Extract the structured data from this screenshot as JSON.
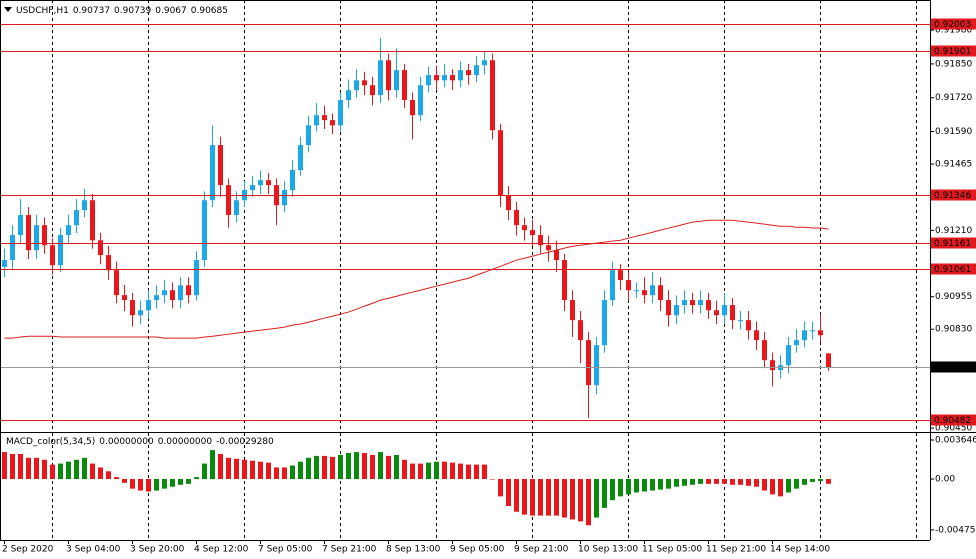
{
  "chart_data": {
    "type": "candlestick",
    "symbol": "USDCHF,H1",
    "ohlc": [
      0.90737,
      0.90739,
      0.9067,
      0.90685
    ],
    "categories": [
      "2 Sep 2020",
      null,
      null,
      null,
      null,
      null,
      null,
      null,
      "3 Sep 04:00",
      null,
      null,
      null,
      null,
      null,
      null,
      null,
      "3 Sep 20:00",
      null,
      null,
      null,
      null,
      null,
      null,
      null,
      "4 Sep 12:00",
      null,
      null,
      null,
      null,
      null,
      null,
      null,
      "7 Sep 05:00",
      null,
      null,
      null,
      null,
      null,
      null,
      null,
      "7 Sep 21:00",
      null,
      null,
      null,
      null,
      null,
      null,
      null,
      "8 Sep 13:00",
      null,
      null,
      null,
      null,
      null,
      null,
      null,
      "9 Sep 05:00",
      null,
      null,
      null,
      null,
      null,
      null,
      null,
      "9 Sep 21:00",
      null,
      null,
      null,
      null,
      null,
      null,
      null,
      "10 Sep 13:00",
      null,
      null,
      null,
      null,
      null,
      null,
      null,
      "11 Sep 05:00",
      null,
      null,
      null,
      null,
      null,
      null,
      null,
      "11 Sep 21:00",
      null,
      null,
      null,
      null,
      null,
      null,
      null,
      "14 Sep 14:00",
      null,
      null,
      null,
      null,
      null,
      null,
      null
    ],
    "open": [
      0.9107,
      0.91096,
      0.91192,
      0.91269,
      0.91134,
      0.9123,
      0.91153,
      0.91076,
      0.91192,
      0.9123,
      0.91288,
      0.91326,
      0.91172,
      0.91115,
      0.91057,
      0.90961,
      0.90942,
      0.90884,
      0.90903,
      0.90942,
      0.90961,
      0.9098,
      0.90942,
      0.90999,
      0.90961,
      0.91096,
      0.91326,
      0.91538,
      0.91384,
      0.91269,
      0.91326,
      0.91365,
      0.91384,
      0.91403,
      0.91384,
      0.91307,
      0.91365,
      0.91442,
      0.91538,
      0.91614,
      0.91653,
      0.91634,
      0.91614,
      0.91711,
      0.91749,
      0.91787,
      0.91768,
      0.9173,
      0.91864,
      0.91749,
      0.91826,
      0.91711,
      0.91653,
      0.91768,
      0.91807,
      0.91787,
      0.91807,
      0.91787,
      0.91826,
      0.91807,
      0.91845,
      0.91864,
      0.91595,
      0.91345,
      0.91288,
      0.9123,
      0.91211,
      0.91192,
      0.91153,
      0.91134,
      0.91096,
      0.90942,
      0.90865,
      0.90788,
      0.90615,
      0.90769,
      0.90942,
      0.91057,
      0.91019,
      0.9098,
      0.9098,
      0.90961,
      0.90999,
      0.90942,
      0.90884,
      0.90923,
      0.90942,
      0.90923,
      0.90942,
      0.90903,
      0.90884,
      0.90923,
      0.90865,
      0.90865,
      0.90826,
      0.90788,
      0.90711,
      0.90673,
      0.90692,
      0.90769,
      0.90788,
      0.90826,
      0.90826,
      0.90737
    ],
    "high": [
      0.9114,
      0.9123,
      0.9133,
      0.913,
      0.9127,
      0.9126,
      0.9118,
      0.9122,
      0.9127,
      0.9133,
      0.9137,
      0.9135,
      0.912,
      0.9115,
      0.9109,
      0.91,
      0.9097,
      0.9094,
      0.9098,
      0.91,
      0.9102,
      0.9101,
      0.9103,
      0.9103,
      0.9113,
      0.9136,
      0.91614,
      0.9157,
      0.9141,
      0.9136,
      0.914,
      0.9142,
      0.9144,
      0.9143,
      0.9141,
      0.914,
      0.9148,
      0.9157,
      0.9165,
      0.917,
      0.9169,
      0.9166,
      0.9174,
      0.9179,
      0.9183,
      0.9182,
      0.918,
      0.9195,
      0.9189,
      0.9191,
      0.9185,
      0.9174,
      0.918,
      0.9184,
      0.9184,
      0.9185,
      0.9183,
      0.9186,
      0.9185,
      0.9188,
      0.919,
      0.9189,
      0.9162,
      0.9138,
      0.9132,
      0.9126,
      0.9125,
      0.9123,
      0.9119,
      0.9117,
      0.9112,
      0.9098,
      0.909,
      0.9082,
      0.908,
      0.9098,
      0.9109,
      0.9108,
      0.9105,
      0.9101,
      0.9103,
      0.9105,
      0.9103,
      0.9098,
      0.9096,
      0.9098,
      0.9097,
      0.9098,
      0.9097,
      0.9094,
      0.9097,
      0.9095,
      0.909,
      0.909,
      0.9086,
      0.9082,
      0.9074,
      0.9073,
      0.908,
      0.9083,
      0.9086,
      0.9086,
      0.9089,
      0.90739
    ],
    "low": [
      0.9103,
      0.9106,
      0.9116,
      0.911,
      0.911,
      0.9112,
      0.9104,
      0.9105,
      0.9116,
      0.912,
      0.9126,
      0.9114,
      0.9108,
      0.9102,
      0.9093,
      0.909,
      0.9084,
      0.9085,
      0.9087,
      0.9091,
      0.9093,
      0.9091,
      0.9091,
      0.9093,
      0.9094,
      0.9107,
      0.913,
      0.9134,
      0.9122,
      0.9124,
      0.913,
      0.9134,
      0.9135,
      0.9135,
      0.9123,
      0.9128,
      0.9134,
      0.9142,
      0.9151,
      0.9159,
      0.916,
      0.9158,
      0.9159,
      0.9168,
      0.9172,
      0.9173,
      0.9169,
      0.917,
      0.9171,
      0.9172,
      0.9168,
      0.9156,
      0.9163,
      0.9174,
      0.9175,
      0.9176,
      0.9175,
      0.9176,
      0.9177,
      0.9178,
      0.9181,
      0.9156,
      0.913,
      0.9125,
      0.9119,
      0.9117,
      0.9115,
      0.9112,
      0.9109,
      0.9105,
      0.909,
      0.908,
      0.907,
      0.90488,
      0.9058,
      0.9074,
      0.9092,
      0.9098,
      0.9094,
      0.9095,
      0.9093,
      0.9093,
      0.909,
      0.9084,
      0.9085,
      0.9089,
      0.9089,
      0.9089,
      0.9087,
      0.9085,
      0.9085,
      0.9083,
      0.9083,
      0.9079,
      0.9075,
      0.9068,
      0.9061,
      0.9064,
      0.9066,
      0.9074,
      0.9076,
      0.9079,
      0.9078,
      0.9067
    ],
    "close": [
      0.91096,
      0.91192,
      0.91269,
      0.91134,
      0.9123,
      0.91153,
      0.91076,
      0.91192,
      0.9123,
      0.91288,
      0.91326,
      0.91172,
      0.91115,
      0.91057,
      0.90961,
      0.90942,
      0.90884,
      0.90903,
      0.90942,
      0.90961,
      0.9098,
      0.90942,
      0.90999,
      0.90961,
      0.91096,
      0.91326,
      0.91538,
      0.91384,
      0.91269,
      0.91326,
      0.91365,
      0.91384,
      0.91403,
      0.91384,
      0.91307,
      0.91365,
      0.91442,
      0.91538,
      0.91614,
      0.91653,
      0.91634,
      0.91614,
      0.91711,
      0.91749,
      0.91787,
      0.91768,
      0.9173,
      0.91864,
      0.91749,
      0.91826,
      0.91711,
      0.91653,
      0.91768,
      0.91807,
      0.91787,
      0.91807,
      0.91787,
      0.91826,
      0.91807,
      0.91845,
      0.91864,
      0.91595,
      0.91345,
      0.91288,
      0.9123,
      0.91211,
      0.91192,
      0.91153,
      0.91134,
      0.91096,
      0.90942,
      0.90865,
      0.90788,
      0.90615,
      0.90769,
      0.90942,
      0.91057,
      0.91019,
      0.9098,
      0.9098,
      0.90961,
      0.90999,
      0.90942,
      0.90884,
      0.90923,
      0.90942,
      0.90923,
      0.90942,
      0.90903,
      0.90884,
      0.90923,
      0.90865,
      0.90865,
      0.90826,
      0.90788,
      0.90711,
      0.90673,
      0.90692,
      0.90769,
      0.90788,
      0.90826,
      0.90826,
      0.90807,
      0.90685
    ],
    "up_color": "#1ea7e6",
    "down_color": "#e8171c",
    "ylim": [
      0.90435,
      0.92088
    ],
    "yticks": [
      {
        "value": 0.9198,
        "label": "0.91980"
      },
      {
        "value": 0.9185,
        "label": "0.91850"
      },
      {
        "value": 0.9172,
        "label": "0.91720"
      },
      {
        "value": 0.9159,
        "label": "0.91590"
      },
      {
        "value": 0.91465,
        "label": "0.91465"
      },
      {
        "value": 0.9121,
        "label": "0.91210"
      },
      {
        "value": 0.90955,
        "label": "0.90955"
      },
      {
        "value": 0.9083,
        "label": "0.90830"
      },
      {
        "value": 0.9045,
        "label": "0.90450"
      }
    ],
    "levels": [
      0.92003,
      0.91901,
      0.91346,
      0.91161,
      0.91061,
      0.90482
    ],
    "level_color": "#e0191e",
    "current_price": 0.90685,
    "moving_average": {
      "color": "#d91f1f",
      "values": [
        0.90796,
        0.90796,
        0.908,
        0.90803,
        0.90803,
        0.90803,
        0.90803,
        0.908,
        0.908,
        0.908,
        0.908,
        0.908,
        0.908,
        0.908,
        0.908,
        0.908,
        0.908,
        0.908,
        0.908,
        0.908,
        0.90796,
        0.90796,
        0.90796,
        0.90796,
        0.90796,
        0.908,
        0.90803,
        0.90807,
        0.90811,
        0.90815,
        0.90819,
        0.90823,
        0.90826,
        0.9083,
        0.90834,
        0.90838,
        0.90846,
        0.9085,
        0.90857,
        0.90865,
        0.90873,
        0.9088,
        0.90888,
        0.90896,
        0.90907,
        0.90919,
        0.9093,
        0.90942,
        0.90949,
        0.90957,
        0.90965,
        0.90973,
        0.9098,
        0.90988,
        0.90996,
        0.91003,
        0.91011,
        0.91019,
        0.91026,
        0.91038,
        0.91049,
        0.91061,
        0.91072,
        0.91084,
        0.91096,
        0.91103,
        0.91111,
        0.91119,
        0.91126,
        0.91134,
        0.91142,
        0.91149,
        0.91153,
        0.91157,
        0.91161,
        0.91165,
        0.91169,
        0.91172,
        0.9118,
        0.91188,
        0.91195,
        0.91203,
        0.91211,
        0.91219,
        0.91226,
        0.91234,
        0.91242,
        0.91245,
        0.91249,
        0.91249,
        0.91249,
        0.91249,
        0.91245,
        0.91242,
        0.91238,
        0.91234,
        0.9123,
        0.91226,
        0.91226,
        0.91222,
        0.91222,
        0.91219,
        0.91219,
        0.91215
      ]
    },
    "macd": {
      "name": "MACD_color(5,34,5)",
      "readouts": [
        "0.00000000",
        "0.00000000",
        "-0.00029280"
      ],
      "up_color": "#0a8a0a",
      "down_color": "#e8171c",
      "ylim": [
        -0.0057,
        0.0043
      ],
      "yticks": [
        0.0036463,
        {
          "value": 0,
          "label": "0.00"
        },
        -0.004752
      ],
      "values": [
        0.00252,
        0.00234,
        0.00234,
        0.00198,
        0.00198,
        0.0018,
        0.00135,
        0.00144,
        0.00162,
        0.0018,
        0.00198,
        0.00144,
        0.00108,
        0.00072,
        0.00018,
        -0.00036,
        -0.0009,
        -0.00108,
        -0.00117,
        -0.00108,
        -0.0009,
        -0.00072,
        -0.00054,
        -0.00045,
        0.00018,
        0.00144,
        0.0027,
        0.00234,
        0.00198,
        0.00189,
        0.0018,
        0.00171,
        0.00162,
        0.00153,
        0.00108,
        0.00108,
        0.00126,
        0.00162,
        0.00198,
        0.00216,
        0.00216,
        0.00207,
        0.00225,
        0.00243,
        0.00252,
        0.00243,
        0.00225,
        0.00252,
        0.00216,
        0.00225,
        0.0018,
        0.00144,
        0.00144,
        0.00153,
        0.00162,
        0.00162,
        0.00153,
        0.00144,
        0.00135,
        0.00135,
        0.00135,
        0,
        -0.00162,
        -0.00252,
        -0.00306,
        -0.00333,
        -0.00342,
        -0.00342,
        -0.00342,
        -0.00342,
        -0.0036,
        -0.00378,
        -0.00396,
        -0.00432,
        -0.0036,
        -0.0027,
        -0.00198,
        -0.00162,
        -0.00144,
        -0.00126,
        -0.00117,
        -0.00108,
        -0.00099,
        -0.0009,
        -0.00072,
        -0.00063,
        -0.00054,
        -0.00045,
        -0.00045,
        -0.00045,
        -0.00045,
        -0.00054,
        -0.00054,
        -0.00063,
        -0.00072,
        -0.00108,
        -0.00144,
        -0.00162,
        -0.00126,
        -0.0009,
        -0.00054,
        -0.00027,
        -0.00018,
        -0.00045
      ]
    }
  }
}
